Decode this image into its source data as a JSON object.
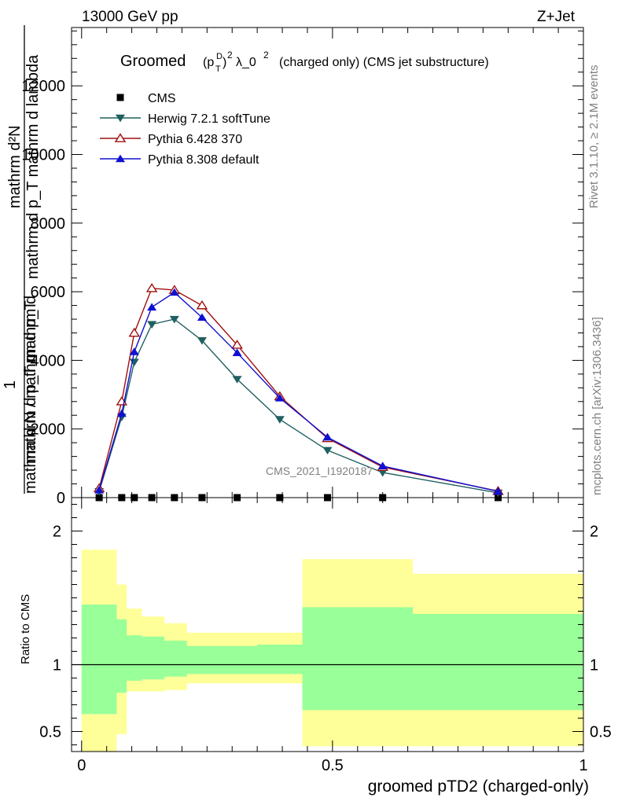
{
  "header": {
    "left": "13000 GeV pp",
    "right": "Z+Jet"
  },
  "side_labels": {
    "rivet": "Rivet 3.1.10, ≥ 2.1M events",
    "mcplots": "mcplots.cern.ch [arXiv:1306.3436]"
  },
  "watermark": "CMS_2021_I1920187",
  "chart_data": [
    {
      "type": "line",
      "title_prefix": "Groomed",
      "title_math_base": "(p",
      "title_math_sup": "D",
      "title_math_sub": "T",
      "title_math_close": ")",
      "title_math_pow": "2",
      "title_lambda": "λ_0",
      "title_lambda_pow": "2",
      "title_suffix": "(charged only) (CMS jet substructure)",
      "ylabel_upper": "mathrm d²N",
      "ylabel_upper_alt": "mathrm d p_T mathrm d lambda",
      "ylabel_one": "1",
      "ylabel_lower": "mathrm d N / mathrm d p_T",
      "ylabel_lower_alt": "mathrm d p_T mathrm d",
      "xlim": [
        -0.02,
        1.0
      ],
      "ylim": [
        0,
        13700
      ],
      "y_ticks": [
        0,
        2000,
        4000,
        6000,
        8000,
        10000,
        12000
      ],
      "y_tick_labels": [
        "0",
        "2000",
        "4000",
        "6000",
        "8000",
        "10000",
        "12000"
      ],
      "legend_position": "top-left",
      "series": [
        {
          "name": "CMS",
          "color": "#000000",
          "marker": "square",
          "x": [
            0.035,
            0.08,
            0.105,
            0.14,
            0.185,
            0.24,
            0.31,
            0.395,
            0.49,
            0.6,
            0.83
          ],
          "y": [
            0,
            0,
            0,
            0,
            0,
            0,
            0,
            0,
            0,
            0,
            0
          ]
        },
        {
          "name": "Herwig 7.2.1 softTune",
          "color": "#1f6060",
          "marker": "triangle-down",
          "x": [
            0.035,
            0.08,
            0.105,
            0.14,
            0.185,
            0.24,
            0.31,
            0.395,
            0.49,
            0.6,
            0.83
          ],
          "y": [
            180,
            2350,
            3950,
            5050,
            5200,
            4580,
            3450,
            2280,
            1380,
            730,
            140
          ]
        },
        {
          "name": "Pythia 6.428 370",
          "color": "#a01010",
          "marker": "triangle-up-open",
          "x": [
            0.035,
            0.08,
            0.105,
            0.14,
            0.185,
            0.24,
            0.31,
            0.395,
            0.49,
            0.6,
            0.83
          ],
          "y": [
            270,
            2800,
            4800,
            6100,
            6050,
            5600,
            4450,
            2950,
            1730,
            890,
            190
          ]
        },
        {
          "name": "Pythia 8.308 default",
          "color": "#1010d0",
          "marker": "triangle-up",
          "x": [
            0.035,
            0.08,
            0.105,
            0.14,
            0.185,
            0.24,
            0.31,
            0.395,
            0.49,
            0.6,
            0.83
          ],
          "y": [
            220,
            2450,
            4250,
            5550,
            5980,
            5250,
            4220,
            2900,
            1760,
            920,
            180
          ]
        }
      ]
    },
    {
      "type": "area",
      "ylabel": "Ratio to CMS",
      "xlabel": "groomed pTD2 (charged-only)",
      "xlim": [
        -0.02,
        1.0
      ],
      "ylim": [
        0.35,
        2.25
      ],
      "x_ticks": [
        0,
        0.5,
        1
      ],
      "x_tick_labels": [
        "0",
        "0.5",
        "1"
      ],
      "y_ticks": [
        0.5,
        1,
        2
      ],
      "y_tick_labels": [
        "0.5",
        "1",
        "2"
      ],
      "reference_line": 1,
      "bin_edges": [
        0.0,
        0.07,
        0.09,
        0.12,
        0.165,
        0.21,
        0.27,
        0.35,
        0.44,
        0.54,
        0.66,
        1.0
      ],
      "inner_band": {
        "color": "#99ff99",
        "low": [
          0.63,
          0.79,
          0.88,
          0.89,
          0.91,
          0.93,
          0.93,
          0.93,
          0.66,
          0.66,
          0.66
        ],
        "high": [
          1.45,
          1.34,
          1.22,
          1.21,
          1.18,
          1.14,
          1.14,
          1.15,
          1.43,
          1.43,
          1.38
        ]
      },
      "outer_band": {
        "color": "#ffff99",
        "low": [
          0.22,
          0.48,
          0.8,
          0.8,
          0.81,
          0.86,
          0.86,
          0.86,
          0.39,
          0.39,
          0.39
        ],
        "high": [
          1.86,
          1.6,
          1.42,
          1.36,
          1.31,
          1.24,
          1.24,
          1.24,
          1.79,
          1.79,
          1.68
        ]
      }
    }
  ]
}
